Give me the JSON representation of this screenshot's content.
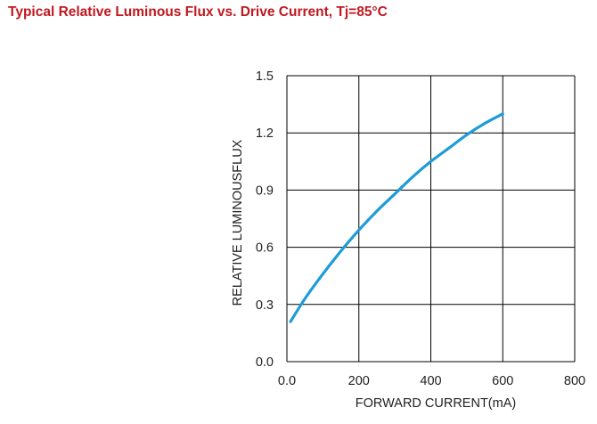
{
  "colors": {
    "title": "#c0181f",
    "curve": "#1e9cd7",
    "grid": "#000000"
  },
  "chart_data": {
    "type": "line",
    "title": "Typical Relative Luminous Flux vs. Drive Current, Tj=85°C",
    "xlabel": "FORWARD CURRENT(mA)",
    "ylabel": "RELATIVE LUMINOUSFLUX",
    "xlim": [
      0,
      800
    ],
    "ylim": [
      0,
      1.5
    ],
    "x_ticks": [
      "0.0",
      "200",
      "400",
      "600",
      "800"
    ],
    "y_ticks": [
      "0.0",
      "0.3",
      "0.6",
      "0.9",
      "1.2",
      "1.5"
    ],
    "grid": true,
    "series": [
      {
        "x": [
          10,
          50,
          100,
          150,
          200,
          250,
          300,
          350,
          400,
          450,
          500,
          550,
          600
        ],
        "values": [
          0.21,
          0.33,
          0.46,
          0.58,
          0.69,
          0.79,
          0.88,
          0.97,
          1.05,
          1.12,
          1.19,
          1.25,
          1.3
        ]
      }
    ]
  }
}
